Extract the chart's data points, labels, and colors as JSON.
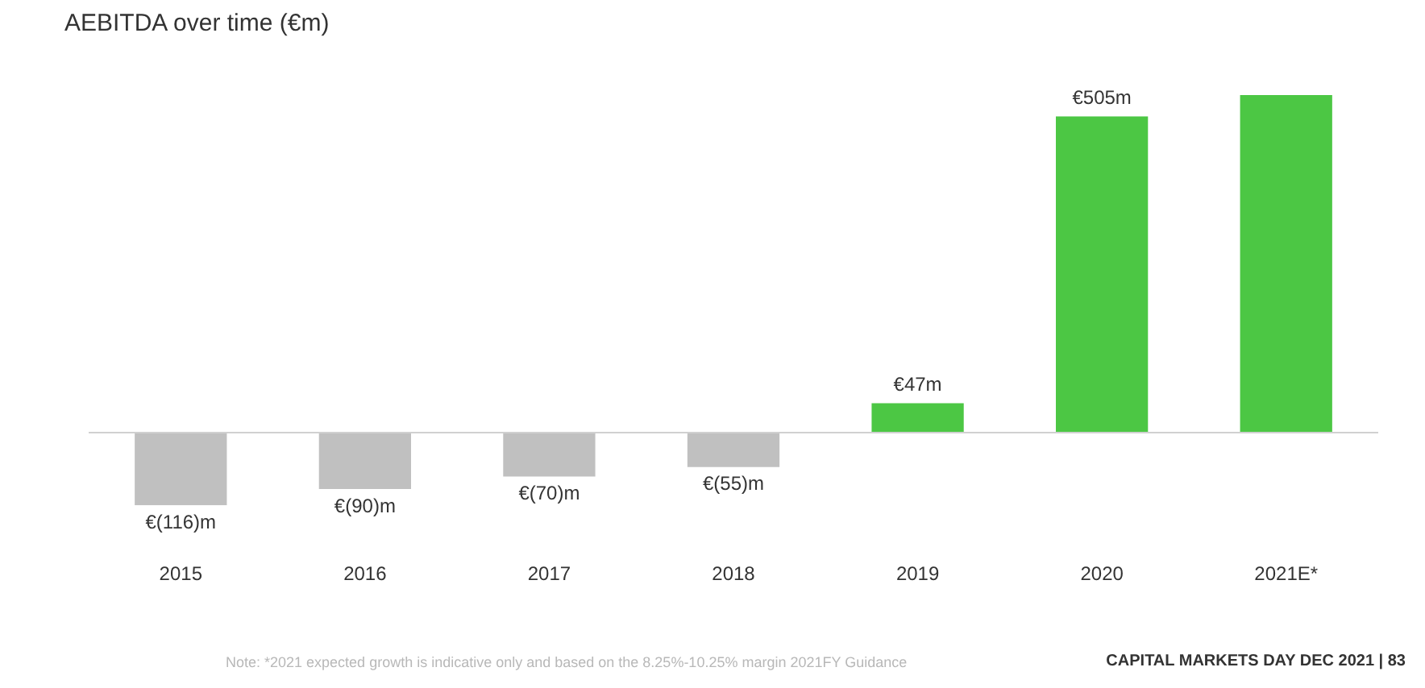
{
  "chart_data": {
    "type": "bar",
    "title": "AEBITDA over time (€m)",
    "categories": [
      "2015",
      "2016",
      "2017",
      "2018",
      "2019",
      "2020",
      "2021E*"
    ],
    "values": [
      -116,
      -90,
      -70,
      -55,
      47,
      505,
      539
    ],
    "colors": [
      "#c0c0c0",
      "#c0c0c0",
      "#c0c0c0",
      "#c0c0c0",
      "#4cc744",
      "#4cc744",
      "#4cc744"
    ],
    "value_labels": [
      "€(116)m",
      "€(90)m",
      "€(70)m",
      "€(55)m",
      "€47m",
      "€505m",
      null
    ],
    "legend": false,
    "grid": false,
    "annotations": [
      "Note: *2021 expected growth is indicative only and based on the 8.25%-10.25% margin 2021FY Guidance",
      "CAPITAL MARKETS DAY DEC 2021  |  83"
    ]
  }
}
